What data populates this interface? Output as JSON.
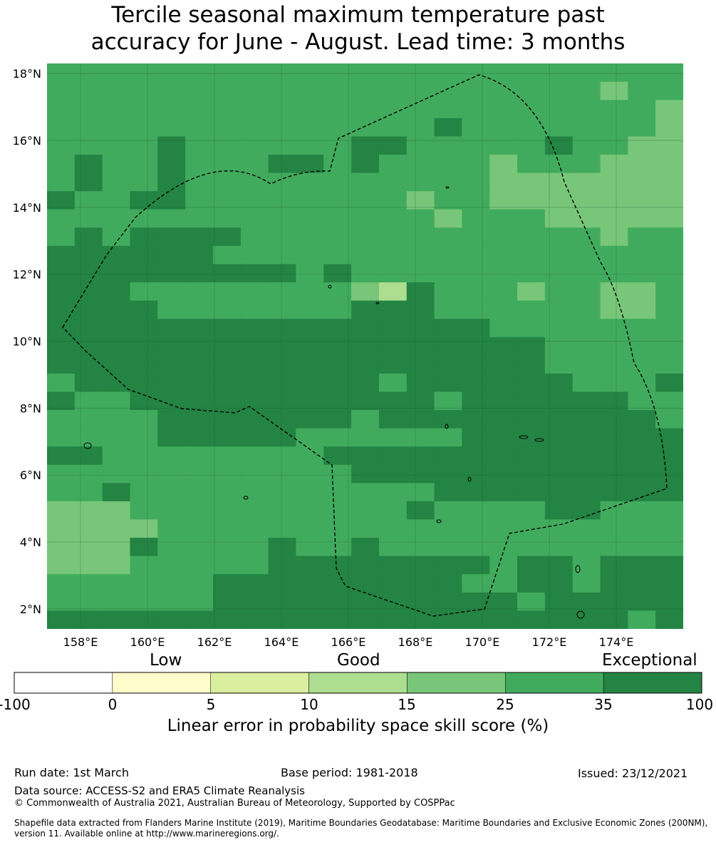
{
  "title": {
    "line1": "Tercile seasonal maximum temperature past",
    "line2": "accuracy for June - August. Lead time: 3 months"
  },
  "map": {
    "lat_labels": [
      "18°N",
      "16°N",
      "14°N",
      "12°N",
      "10°N",
      "8°N",
      "6°N",
      "4°N",
      "2°N"
    ],
    "lon_labels": [
      "158°E",
      "160°E",
      "162°E",
      "164°E",
      "166°E",
      "168°E",
      "170°E",
      "172°E",
      "174°E"
    ],
    "lat_values": [
      18,
      16,
      14,
      12,
      10,
      8,
      6,
      4,
      2
    ],
    "lon_values": [
      158,
      160,
      162,
      164,
      166,
      168,
      170,
      172,
      174
    ],
    "lon_range": [
      157,
      176
    ],
    "lat_range": [
      1.4,
      18.3
    ]
  },
  "colorbar": {
    "words": {
      "low": "Low",
      "good": "Good",
      "exceptional": "Exceptional"
    },
    "ticks": [
      "-100",
      "0",
      "5",
      "10",
      "15",
      "25",
      "35",
      "100"
    ],
    "colors": [
      "#ffffff",
      "#fffdcc",
      "#daee9f",
      "#addd8e",
      "#78c679",
      "#41ab5d",
      "#238443"
    ],
    "title": "Linear error in probability space skill score (%)"
  },
  "footer": {
    "run_date": "Run date: 1st March",
    "base_period": "Base period: 1981-2018",
    "issued": "Issued: 23/12/2021",
    "data_source": "Data source: ACCESS-S2 and ERA5 Climate Reanalysis",
    "copyright": "© Commonwealth of Australia 2021, Australian Bureau of Meteorology, Supported by COSPPac",
    "shapefile_line1": "Shapefile data extracted from Flanders Marine Institute (2019), Maritime Boundaries Geodatabase: Maritime Boundaries and Exclusive Economic Zones (200NM),",
    "shapefile_line2": "version 11. Available online at http://www.marineregions.org/."
  }
}
